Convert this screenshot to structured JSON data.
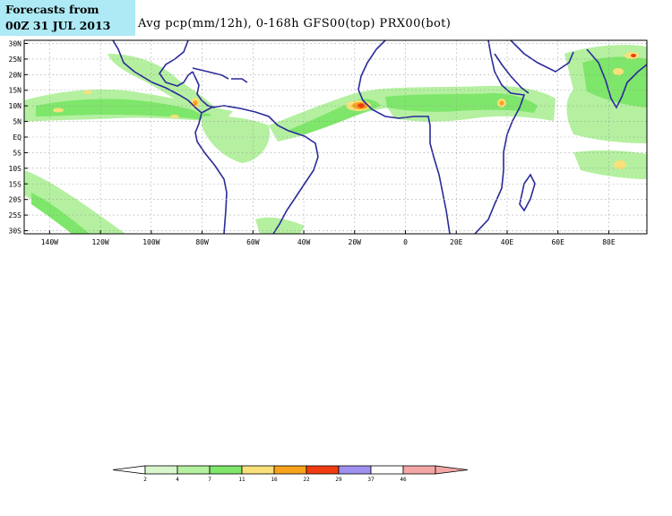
{
  "header": {
    "forecast_line1": "Forecasts from",
    "forecast_line2": "00Z 31 JUL 2013",
    "title": "Avg pcp(mm/12h), 0-168h   GFS00(top) PRX00(bot)"
  },
  "map": {
    "lon_labels": [
      "140W",
      "120W",
      "100W",
      "80W",
      "60W",
      "40W",
      "20W",
      "0",
      "20E",
      "40E",
      "60E",
      "80E"
    ],
    "lat_labels": [
      "30N",
      "25N",
      "20N",
      "15N",
      "10N",
      "5N",
      "EQ",
      "5S",
      "10S",
      "15S",
      "20S",
      "25S",
      "30S"
    ],
    "lon_values": [
      -140,
      -120,
      -100,
      -80,
      -60,
      -40,
      -20,
      0,
      20,
      40,
      60,
      80
    ],
    "lat_values": [
      30,
      25,
      20,
      15,
      10,
      5,
      0,
      -5,
      -10,
      -15,
      -20,
      -25,
      -30
    ],
    "lon_range": [
      -150,
      95
    ],
    "lat_range": [
      -31,
      31
    ],
    "coast_color": "#2a2a9a"
  },
  "colorbar": {
    "labels": [
      "2",
      "4",
      "7",
      "11",
      "16",
      "22",
      "29",
      "37",
      "46"
    ],
    "colors": [
      "#ffffff",
      "#d8f7cc",
      "#b4f0a0",
      "#7ee66a",
      "#f9e07a",
      "#f7a21b",
      "#f03c10",
      "#a090f0",
      "#ffffff",
      "#f4a6a6"
    ]
  }
}
